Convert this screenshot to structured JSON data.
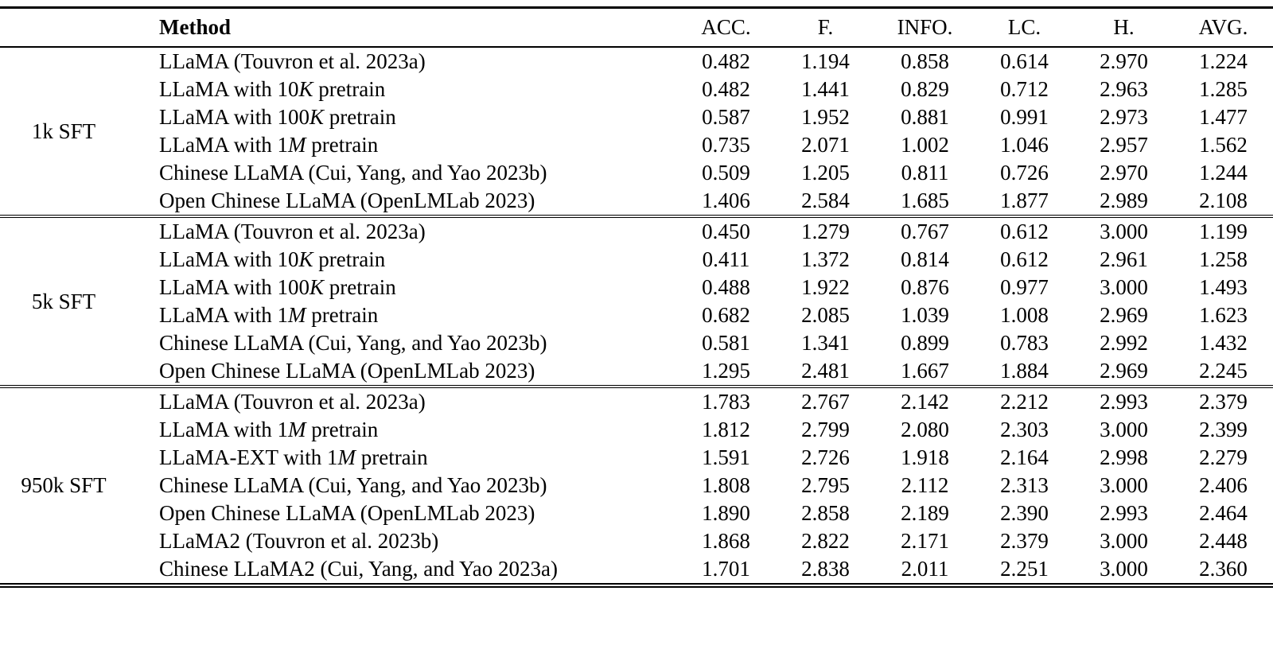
{
  "table": {
    "columns": [
      "Method",
      "ACC.",
      "F.",
      "INFO.",
      "LC.",
      "H.",
      "AVG."
    ],
    "groups": [
      {
        "label": "1k SFT",
        "rows": [
          {
            "method": "LLaMA (Touvron et al. 2023a)",
            "values": [
              "0.482",
              "1.194",
              "0.858",
              "0.614",
              "2.970",
              "1.224"
            ]
          },
          {
            "method": "LLaMA with 10K pretrain",
            "method_rich": "LLaMA with 10{K} pretrain",
            "values": [
              "0.482",
              "1.441",
              "0.829",
              "0.712",
              "2.963",
              "1.285"
            ]
          },
          {
            "method": "LLaMA with 100K pretrain",
            "method_rich": "LLaMA with 100{K} pretrain",
            "values": [
              "0.587",
              "1.952",
              "0.881",
              "0.991",
              "2.973",
              "1.477"
            ]
          },
          {
            "method": "LLaMA with 1M pretrain",
            "method_rich": "LLaMA with 1{M} pretrain",
            "values": [
              "0.735",
              "2.071",
              "1.002",
              "1.046",
              "2.957",
              "1.562"
            ]
          },
          {
            "method": "Chinese LLaMA (Cui, Yang, and Yao 2023b)",
            "values": [
              "0.509",
              "1.205",
              "0.811",
              "0.726",
              "2.970",
              "1.244"
            ]
          },
          {
            "method": "Open Chinese LLaMA (OpenLMLab 2023)",
            "values": [
              "1.406",
              "2.584",
              "1.685",
              "1.877",
              "2.989",
              "2.108"
            ]
          }
        ]
      },
      {
        "label": "5k SFT",
        "rows": [
          {
            "method": "LLaMA (Touvron et al. 2023a)",
            "values": [
              "0.450",
              "1.279",
              "0.767",
              "0.612",
              "3.000",
              "1.199"
            ]
          },
          {
            "method": "LLaMA with 10K pretrain",
            "method_rich": "LLaMA with 10{K} pretrain",
            "values": [
              "0.411",
              "1.372",
              "0.814",
              "0.612",
              "2.961",
              "1.258"
            ]
          },
          {
            "method": "LLaMA with 100K pretrain",
            "method_rich": "LLaMA with 100{K} pretrain",
            "values": [
              "0.488",
              "1.922",
              "0.876",
              "0.977",
              "3.000",
              "1.493"
            ]
          },
          {
            "method": "LLaMA with 1M pretrain",
            "method_rich": "LLaMA with 1{M} pretrain",
            "values": [
              "0.682",
              "2.085",
              "1.039",
              "1.008",
              "2.969",
              "1.623"
            ]
          },
          {
            "method": "Chinese LLaMA (Cui, Yang, and Yao 2023b)",
            "values": [
              "0.581",
              "1.341",
              "0.899",
              "0.783",
              "2.992",
              "1.432"
            ]
          },
          {
            "method": "Open Chinese LLaMA (OpenLMLab 2023)",
            "values": [
              "1.295",
              "2.481",
              "1.667",
              "1.884",
              "2.969",
              "2.245"
            ]
          }
        ]
      },
      {
        "label": "950k SFT",
        "rows": [
          {
            "method": "LLaMA (Touvron et al. 2023a)",
            "values": [
              "1.783",
              "2.767",
              "2.142",
              "2.212",
              "2.993",
              "2.379"
            ]
          },
          {
            "method": "LLaMA with 1M pretrain",
            "method_rich": "LLaMA with 1{M} pretrain",
            "values": [
              "1.812",
              "2.799",
              "2.080",
              "2.303",
              "3.000",
              "2.399"
            ]
          },
          {
            "method": "LLaMA-EXT with 1M pretrain",
            "method_rich": "LLaMA-EXT with 1{M} pretrain",
            "values": [
              "1.591",
              "2.726",
              "1.918",
              "2.164",
              "2.998",
              "2.279"
            ]
          },
          {
            "method": "Chinese LLaMA (Cui, Yang, and Yao 2023b)",
            "values": [
              "1.808",
              "2.795",
              "2.112",
              "2.313",
              "3.000",
              "2.406"
            ]
          },
          {
            "method": "Open Chinese LLaMA (OpenLMLab 2023)",
            "values": [
              "1.890",
              "2.858",
              "2.189",
              "2.390",
              "2.993",
              "2.464"
            ]
          },
          {
            "method": "LLaMA2 (Touvron et al. 2023b)",
            "values": [
              "1.868",
              "2.822",
              "2.171",
              "2.379",
              "3.000",
              "2.448"
            ]
          },
          {
            "method": "Chinese LLaMA2 (Cui, Yang, and Yao 2023a)",
            "values": [
              "1.701",
              "2.838",
              "2.011",
              "2.251",
              "3.000",
              "2.360"
            ]
          }
        ]
      }
    ]
  }
}
